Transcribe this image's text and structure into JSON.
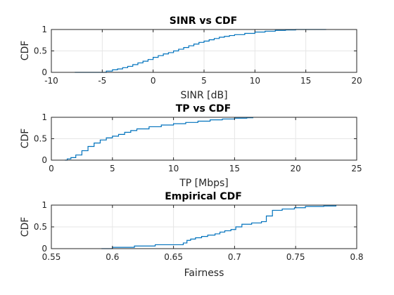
{
  "chart_data": [
    {
      "type": "line",
      "title": "SINR vs CDF",
      "xlabel": "SINR [dB]",
      "ylabel": "CDF",
      "xlim": [
        -10,
        20
      ],
      "ylim": [
        0,
        1
      ],
      "xticks": [
        "-10",
        "-5",
        "0",
        "5",
        "10",
        "15",
        "20"
      ],
      "yticks": [
        "0",
        "0.5",
        "1"
      ],
      "grid": true,
      "color": "#0072BD",
      "series": [
        {
          "x": [
            -7.7,
            -5.0,
            -4.6,
            -4.0,
            -3.5,
            -3.0,
            -2.5,
            -2.0,
            -1.5,
            -1.0,
            -0.5,
            0.0,
            0.5,
            1.0,
            1.5,
            2.0,
            2.5,
            3.0,
            3.5,
            4.0,
            4.5,
            5.0,
            5.5,
            6.0,
            6.5,
            7.0,
            7.5,
            8.0,
            9.0,
            10.0,
            11.0,
            12.0,
            13.0,
            14.0,
            17.0
          ],
          "y": [
            0.0,
            0.0,
            0.03,
            0.06,
            0.08,
            0.11,
            0.14,
            0.18,
            0.22,
            0.26,
            0.3,
            0.35,
            0.39,
            0.43,
            0.46,
            0.5,
            0.54,
            0.58,
            0.62,
            0.66,
            0.7,
            0.73,
            0.76,
            0.79,
            0.82,
            0.84,
            0.86,
            0.88,
            0.91,
            0.94,
            0.96,
            0.98,
            0.99,
            1.0,
            1.0
          ]
        }
      ]
    },
    {
      "type": "line",
      "title": "TP vs CDF",
      "xlabel": "TP [Mbps]",
      "ylabel": "CDF",
      "xlim": [
        0,
        25
      ],
      "ylim": [
        0,
        1
      ],
      "xticks": [
        "0",
        "5",
        "10",
        "15",
        "20",
        "25"
      ],
      "yticks": [
        "0",
        "0.5",
        "1"
      ],
      "grid": true,
      "color": "#0072BD",
      "series": [
        {
          "x": [
            1.1,
            1.3,
            1.6,
            2.0,
            2.5,
            3.0,
            3.5,
            4.0,
            4.5,
            5.0,
            5.5,
            6.0,
            6.5,
            7.0,
            8.0,
            9.0,
            10.0,
            11.0,
            12.0,
            13.0,
            14.0,
            15.0,
            16.0,
            16.5
          ],
          "y": [
            0.0,
            0.03,
            0.06,
            0.12,
            0.22,
            0.32,
            0.4,
            0.47,
            0.52,
            0.56,
            0.6,
            0.65,
            0.69,
            0.73,
            0.78,
            0.82,
            0.85,
            0.88,
            0.91,
            0.94,
            0.96,
            0.98,
            0.99,
            1.0
          ]
        }
      ]
    },
    {
      "type": "line",
      "title": "Empirical CDF",
      "xlabel": "Fairness",
      "ylabel": "CDF",
      "xlim": [
        0.55,
        0.8
      ],
      "ylim": [
        0,
        1
      ],
      "xticks": [
        "0.55",
        "0.6",
        "0.65",
        "0.7",
        "0.75",
        "0.8"
      ],
      "yticks": [
        "0",
        "0.5",
        "1"
      ],
      "grid": true,
      "color": "#0072BD",
      "series": [
        {
          "x": [
            0.591,
            0.6,
            0.618,
            0.635,
            0.658,
            0.661,
            0.664,
            0.668,
            0.673,
            0.678,
            0.684,
            0.688,
            0.692,
            0.697,
            0.701,
            0.706,
            0.714,
            0.722,
            0.726,
            0.731,
            0.739,
            0.749,
            0.758,
            0.773,
            0.783
          ],
          "y": [
            0.0,
            0.03,
            0.06,
            0.09,
            0.13,
            0.19,
            0.22,
            0.25,
            0.28,
            0.31,
            0.34,
            0.38,
            0.41,
            0.44,
            0.5,
            0.56,
            0.59,
            0.62,
            0.75,
            0.88,
            0.91,
            0.94,
            0.97,
            0.98,
            1.0
          ]
        }
      ]
    }
  ]
}
